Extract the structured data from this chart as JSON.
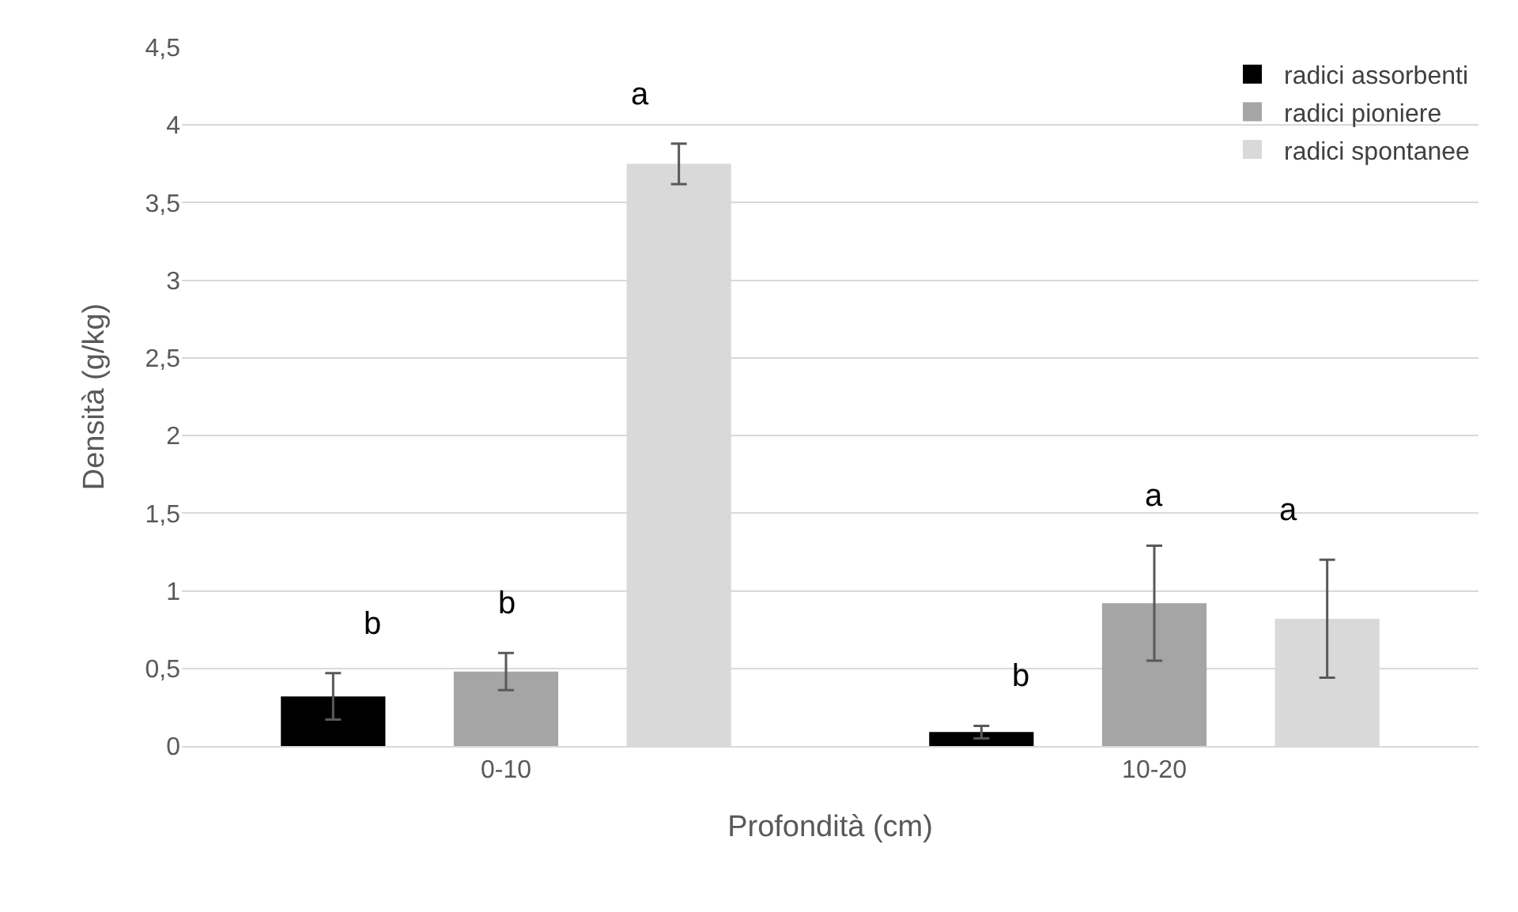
{
  "chart_data": {
    "type": "bar",
    "xlabel": "Profondità (cm)",
    "ylabel": "Densità (g/kg)",
    "categories": [
      "0-10",
      "10-20"
    ],
    "series": [
      {
        "name": "radici assorbenti",
        "color": "#000000",
        "values": [
          0.32,
          0.09
        ],
        "errors": [
          0.15,
          0.04
        ]
      },
      {
        "name": "radici pioniere",
        "color": "#a5a5a5",
        "values": [
          0.48,
          0.92
        ],
        "errors": [
          0.12,
          0.37
        ]
      },
      {
        "name": "radici spontanee",
        "color": "#d9d9d9",
        "values": [
          3.75,
          0.82
        ],
        "errors": [
          0.13,
          0.38
        ]
      }
    ],
    "ylim": [
      0,
      4.5
    ],
    "yticks": [
      0,
      {
        "value": 0.5,
        "label": "0,5"
      },
      1,
      {
        "value": 1.5,
        "label": "1,5"
      },
      2,
      {
        "value": 2.5,
        "label": "2,5"
      },
      3,
      {
        "value": 3.5,
        "label": "3,5"
      },
      4,
      {
        "value": 4.5,
        "label": "4,5"
      }
    ],
    "grid": "y",
    "legend": "top right",
    "annotations": [
      "b",
      "b",
      "a",
      "b",
      "a",
      "a"
    ]
  }
}
